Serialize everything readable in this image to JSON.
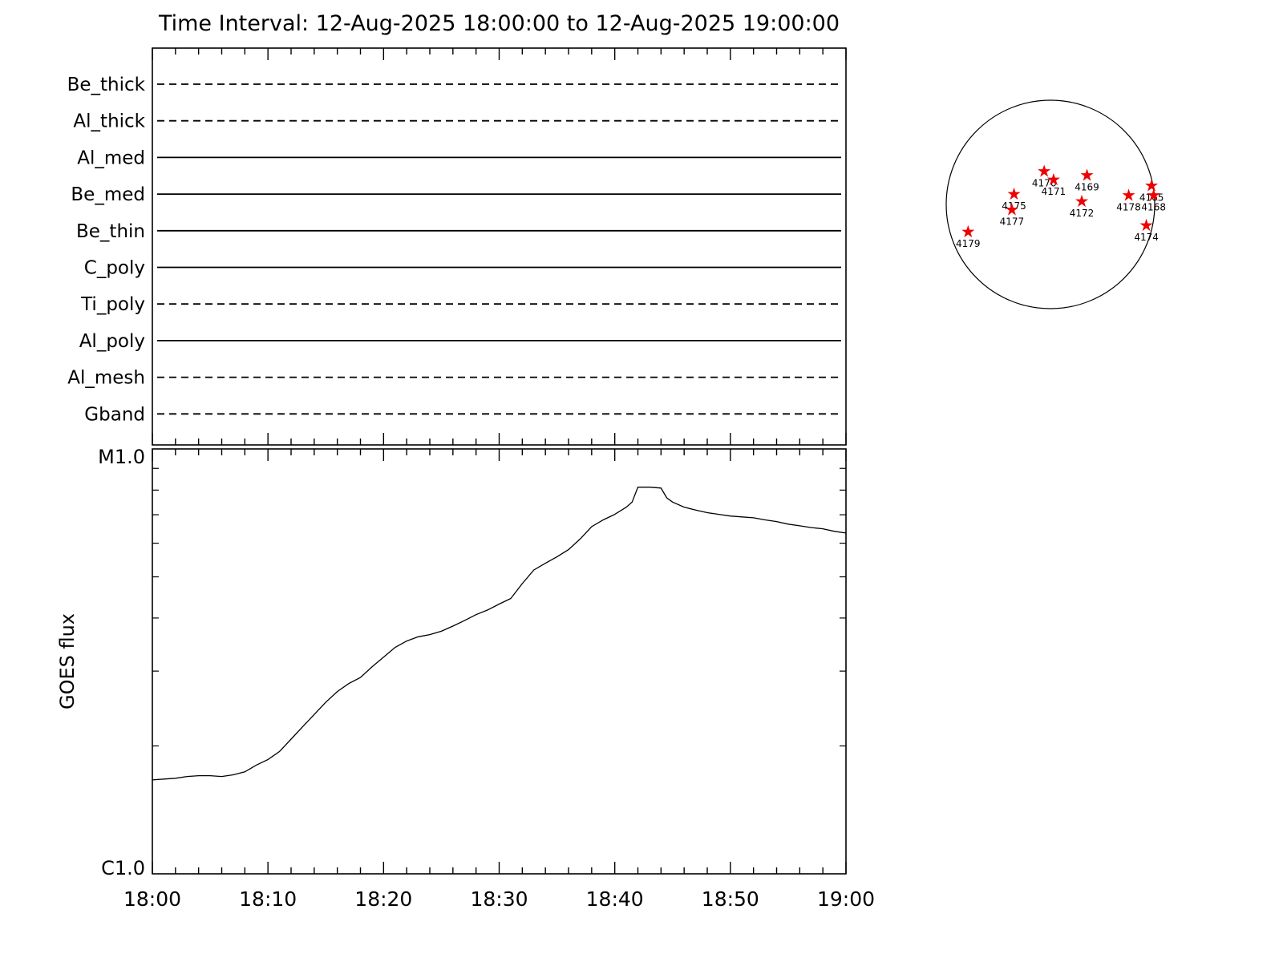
{
  "title": "Time Interval: 12-Aug-2025 18:00:00 to 12-Aug-2025 19:00:00",
  "chart_data": [
    {
      "type": "line",
      "panel": "xrt-filter-timeline",
      "categories": [
        "Be_thick",
        "Al_thick",
        "Al_med",
        "Be_med",
        "Be_thin",
        "C_poly",
        "Ti_poly",
        "Al_poly",
        "Al_mesh",
        "Gband"
      ],
      "line_styles": [
        "dashed",
        "dashed",
        "solid",
        "solid",
        "solid",
        "solid",
        "dashed",
        "solid",
        "dashed",
        "dashed"
      ],
      "x_range": [
        "18:00",
        "19:00"
      ],
      "grid": false,
      "legend": "none"
    },
    {
      "type": "line",
      "panel": "goes-flux",
      "ylabel": "GOES flux",
      "yscale": "log",
      "yticks": [
        "M1.0",
        "C1.0"
      ],
      "ylim": [
        "C1.0",
        "M1.0"
      ],
      "xticks": [
        "18:00",
        "18:10",
        "18:20",
        "18:30",
        "18:40",
        "18:50",
        "19:00"
      ],
      "grid": false,
      "legend": "none",
      "series": [
        {
          "name": "GOES flux",
          "x_unit": "minutes after 18:00",
          "y_unit": "log10(flux/C1.0); 0 = C1.0, 1 = M1.0",
          "points": [
            [
              0,
              0.221
            ],
            [
              1,
              0.223
            ],
            [
              2,
              0.225
            ],
            [
              3,
              0.229
            ],
            [
              4,
              0.231
            ],
            [
              5,
              0.231
            ],
            [
              6,
              0.229
            ],
            [
              7,
              0.233
            ],
            [
              8,
              0.24
            ],
            [
              9,
              0.256
            ],
            [
              10,
              0.269
            ],
            [
              11,
              0.288
            ],
            [
              12,
              0.317
            ],
            [
              13,
              0.346
            ],
            [
              14,
              0.375
            ],
            [
              15,
              0.404
            ],
            [
              16,
              0.429
            ],
            [
              17,
              0.448
            ],
            [
              18,
              0.462
            ],
            [
              19,
              0.487
            ],
            [
              20,
              0.51
            ],
            [
              21,
              0.533
            ],
            [
              22,
              0.548
            ],
            [
              23,
              0.558
            ],
            [
              24,
              0.563
            ],
            [
              25,
              0.571
            ],
            [
              26,
              0.583
            ],
            [
              27,
              0.596
            ],
            [
              28,
              0.61
            ],
            [
              29,
              0.621
            ],
            [
              30,
              0.635
            ],
            [
              31,
              0.648
            ],
            [
              32,
              0.683
            ],
            [
              33,
              0.715
            ],
            [
              34,
              0.731
            ],
            [
              35,
              0.746
            ],
            [
              36,
              0.763
            ],
            [
              37,
              0.788
            ],
            [
              38,
              0.817
            ],
            [
              39,
              0.833
            ],
            [
              40,
              0.846
            ],
            [
              41,
              0.863
            ],
            [
              41.5,
              0.875
            ],
            [
              42,
              0.91
            ],
            [
              43,
              0.91
            ],
            [
              44,
              0.908
            ],
            [
              44.5,
              0.885
            ],
            [
              45,
              0.875
            ],
            [
              46,
              0.863
            ],
            [
              47,
              0.856
            ],
            [
              48,
              0.85
            ],
            [
              49,
              0.846
            ],
            [
              50,
              0.842
            ],
            [
              51,
              0.84
            ],
            [
              52,
              0.838
            ],
            [
              53,
              0.833
            ],
            [
              54,
              0.829
            ],
            [
              55,
              0.823
            ],
            [
              56,
              0.819
            ],
            [
              57,
              0.815
            ],
            [
              58,
              0.812
            ],
            [
              59,
              0.806
            ],
            [
              60,
              0.802
            ]
          ]
        }
      ]
    },
    {
      "type": "scatter",
      "panel": "solar-disk",
      "marker": "star",
      "marker_color": "#ee0000",
      "x_unit": "fraction of solar radius from disk center",
      "y_unit": "fraction of solar radius from disk center",
      "regions": [
        {
          "noaa": "4176",
          "dx": -0.06,
          "dy": -0.32
        },
        {
          "noaa": "4171",
          "dx": 0.03,
          "dy": -0.24
        },
        {
          "noaa": "4169",
          "dx": 0.35,
          "dy": -0.28
        },
        {
          "noaa": "4175",
          "dx": -0.35,
          "dy": -0.1
        },
        {
          "noaa": "4177",
          "dx": -0.37,
          "dy": 0.05
        },
        {
          "noaa": "4172",
          "dx": 0.3,
          "dy": -0.03
        },
        {
          "noaa": "4178",
          "dx": 0.75,
          "dy": -0.09
        },
        {
          "noaa": "4165",
          "dx": 0.97,
          "dy": -0.18
        },
        {
          "noaa": "4168",
          "dx": 0.99,
          "dy": -0.09
        },
        {
          "noaa": "4174",
          "dx": 0.92,
          "dy": 0.2
        },
        {
          "noaa": "4179",
          "dx": -0.79,
          "dy": 0.26
        }
      ]
    }
  ]
}
